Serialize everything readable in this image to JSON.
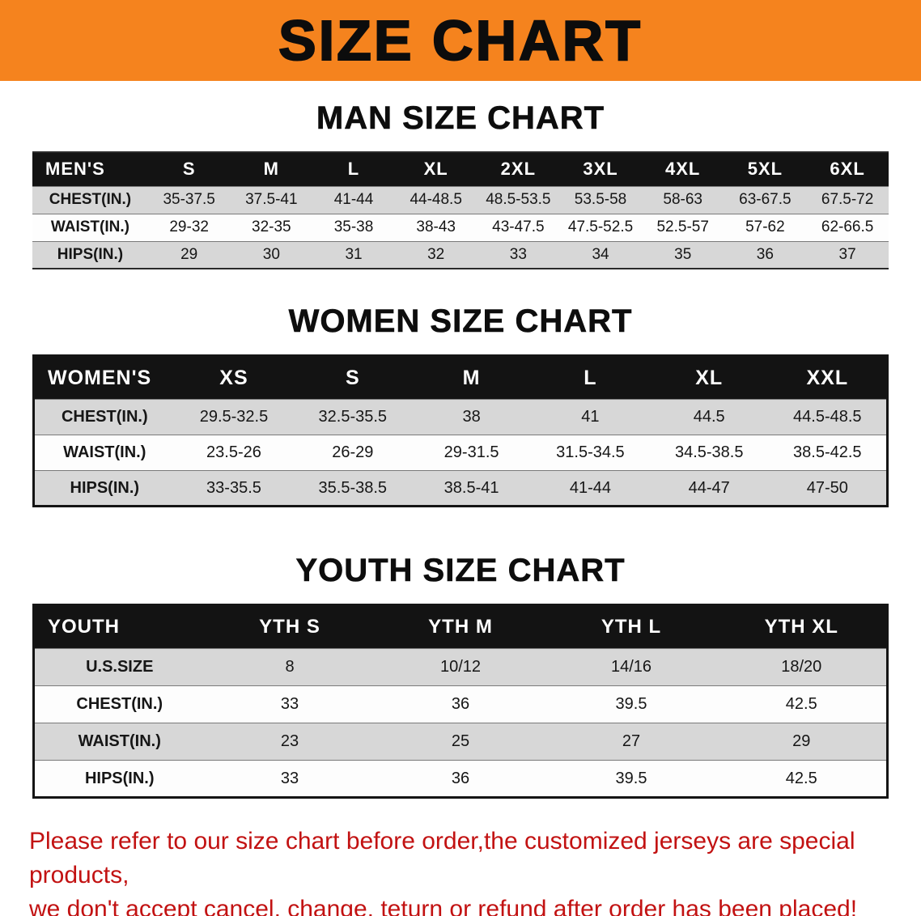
{
  "banner": {
    "title": "SIZE CHART",
    "bg_color": "#f5831e"
  },
  "sections": [
    {
      "name": "men",
      "heading": "MAN SIZE CHART",
      "table": {
        "header": [
          "MEN'S",
          "S",
          "M",
          "L",
          "XL",
          "2XL",
          "3XL",
          "4XL",
          "5XL",
          "6XL"
        ],
        "rows": [
          {
            "label": "CHEST(IN.)",
            "values": [
              "35-37.5",
              "37.5-41",
              "41-44",
              "44-48.5",
              "48.5-53.5",
              "53.5-58",
              "58-63",
              "63-67.5",
              "67.5-72"
            ]
          },
          {
            "label": "WAIST(IN.)",
            "values": [
              "29-32",
              "32-35",
              "35-38",
              "38-43",
              "43-47.5",
              "47.5-52.5",
              "52.5-57",
              "57-62",
              "62-66.5"
            ]
          },
          {
            "label": "HIPS(IN.)",
            "values": [
              "29",
              "30",
              "31",
              "32",
              "33",
              "34",
              "35",
              "36",
              "37"
            ]
          }
        ]
      }
    },
    {
      "name": "women",
      "heading": "WOMEN SIZE CHART",
      "table": {
        "header": [
          "WOMEN'S",
          "XS",
          "S",
          "M",
          "L",
          "XL",
          "XXL"
        ],
        "rows": [
          {
            "label": "CHEST(IN.)",
            "values": [
              "29.5-32.5",
              "32.5-35.5",
              "38",
              "41",
              "44.5",
              "44.5-48.5"
            ]
          },
          {
            "label": "WAIST(IN.)",
            "values": [
              "23.5-26",
              "26-29",
              "29-31.5",
              "31.5-34.5",
              "34.5-38.5",
              "38.5-42.5"
            ]
          },
          {
            "label": "HIPS(IN.)",
            "values": [
              "33-35.5",
              "35.5-38.5",
              "38.5-41",
              "41-44",
              "44-47",
              "47-50"
            ]
          }
        ]
      }
    },
    {
      "name": "youth",
      "heading": "YOUTH SIZE CHART",
      "table": {
        "header": [
          "YOUTH",
          "YTH S",
          "YTH M",
          "YTH L",
          "YTH XL"
        ],
        "rows": [
          {
            "label": "U.S.SIZE",
            "values": [
              "8",
              "10/12",
              "14/16",
              "18/20"
            ]
          },
          {
            "label": "CHEST(IN.)",
            "values": [
              "33",
              "36",
              "39.5",
              "42.5"
            ]
          },
          {
            "label": "WAIST(IN.)",
            "values": [
              "23",
              "25",
              "27",
              "29"
            ]
          },
          {
            "label": "HIPS(IN.)",
            "values": [
              "33",
              "36",
              "39.5",
              "42.5"
            ]
          }
        ]
      }
    }
  ],
  "footer": {
    "line1": "Please refer to our size chart before order,the customized jerseys are special products,",
    "line2": "we don't accept cancel, change, teturn or refund after order has been placed!",
    "text_color": "#c21212"
  }
}
